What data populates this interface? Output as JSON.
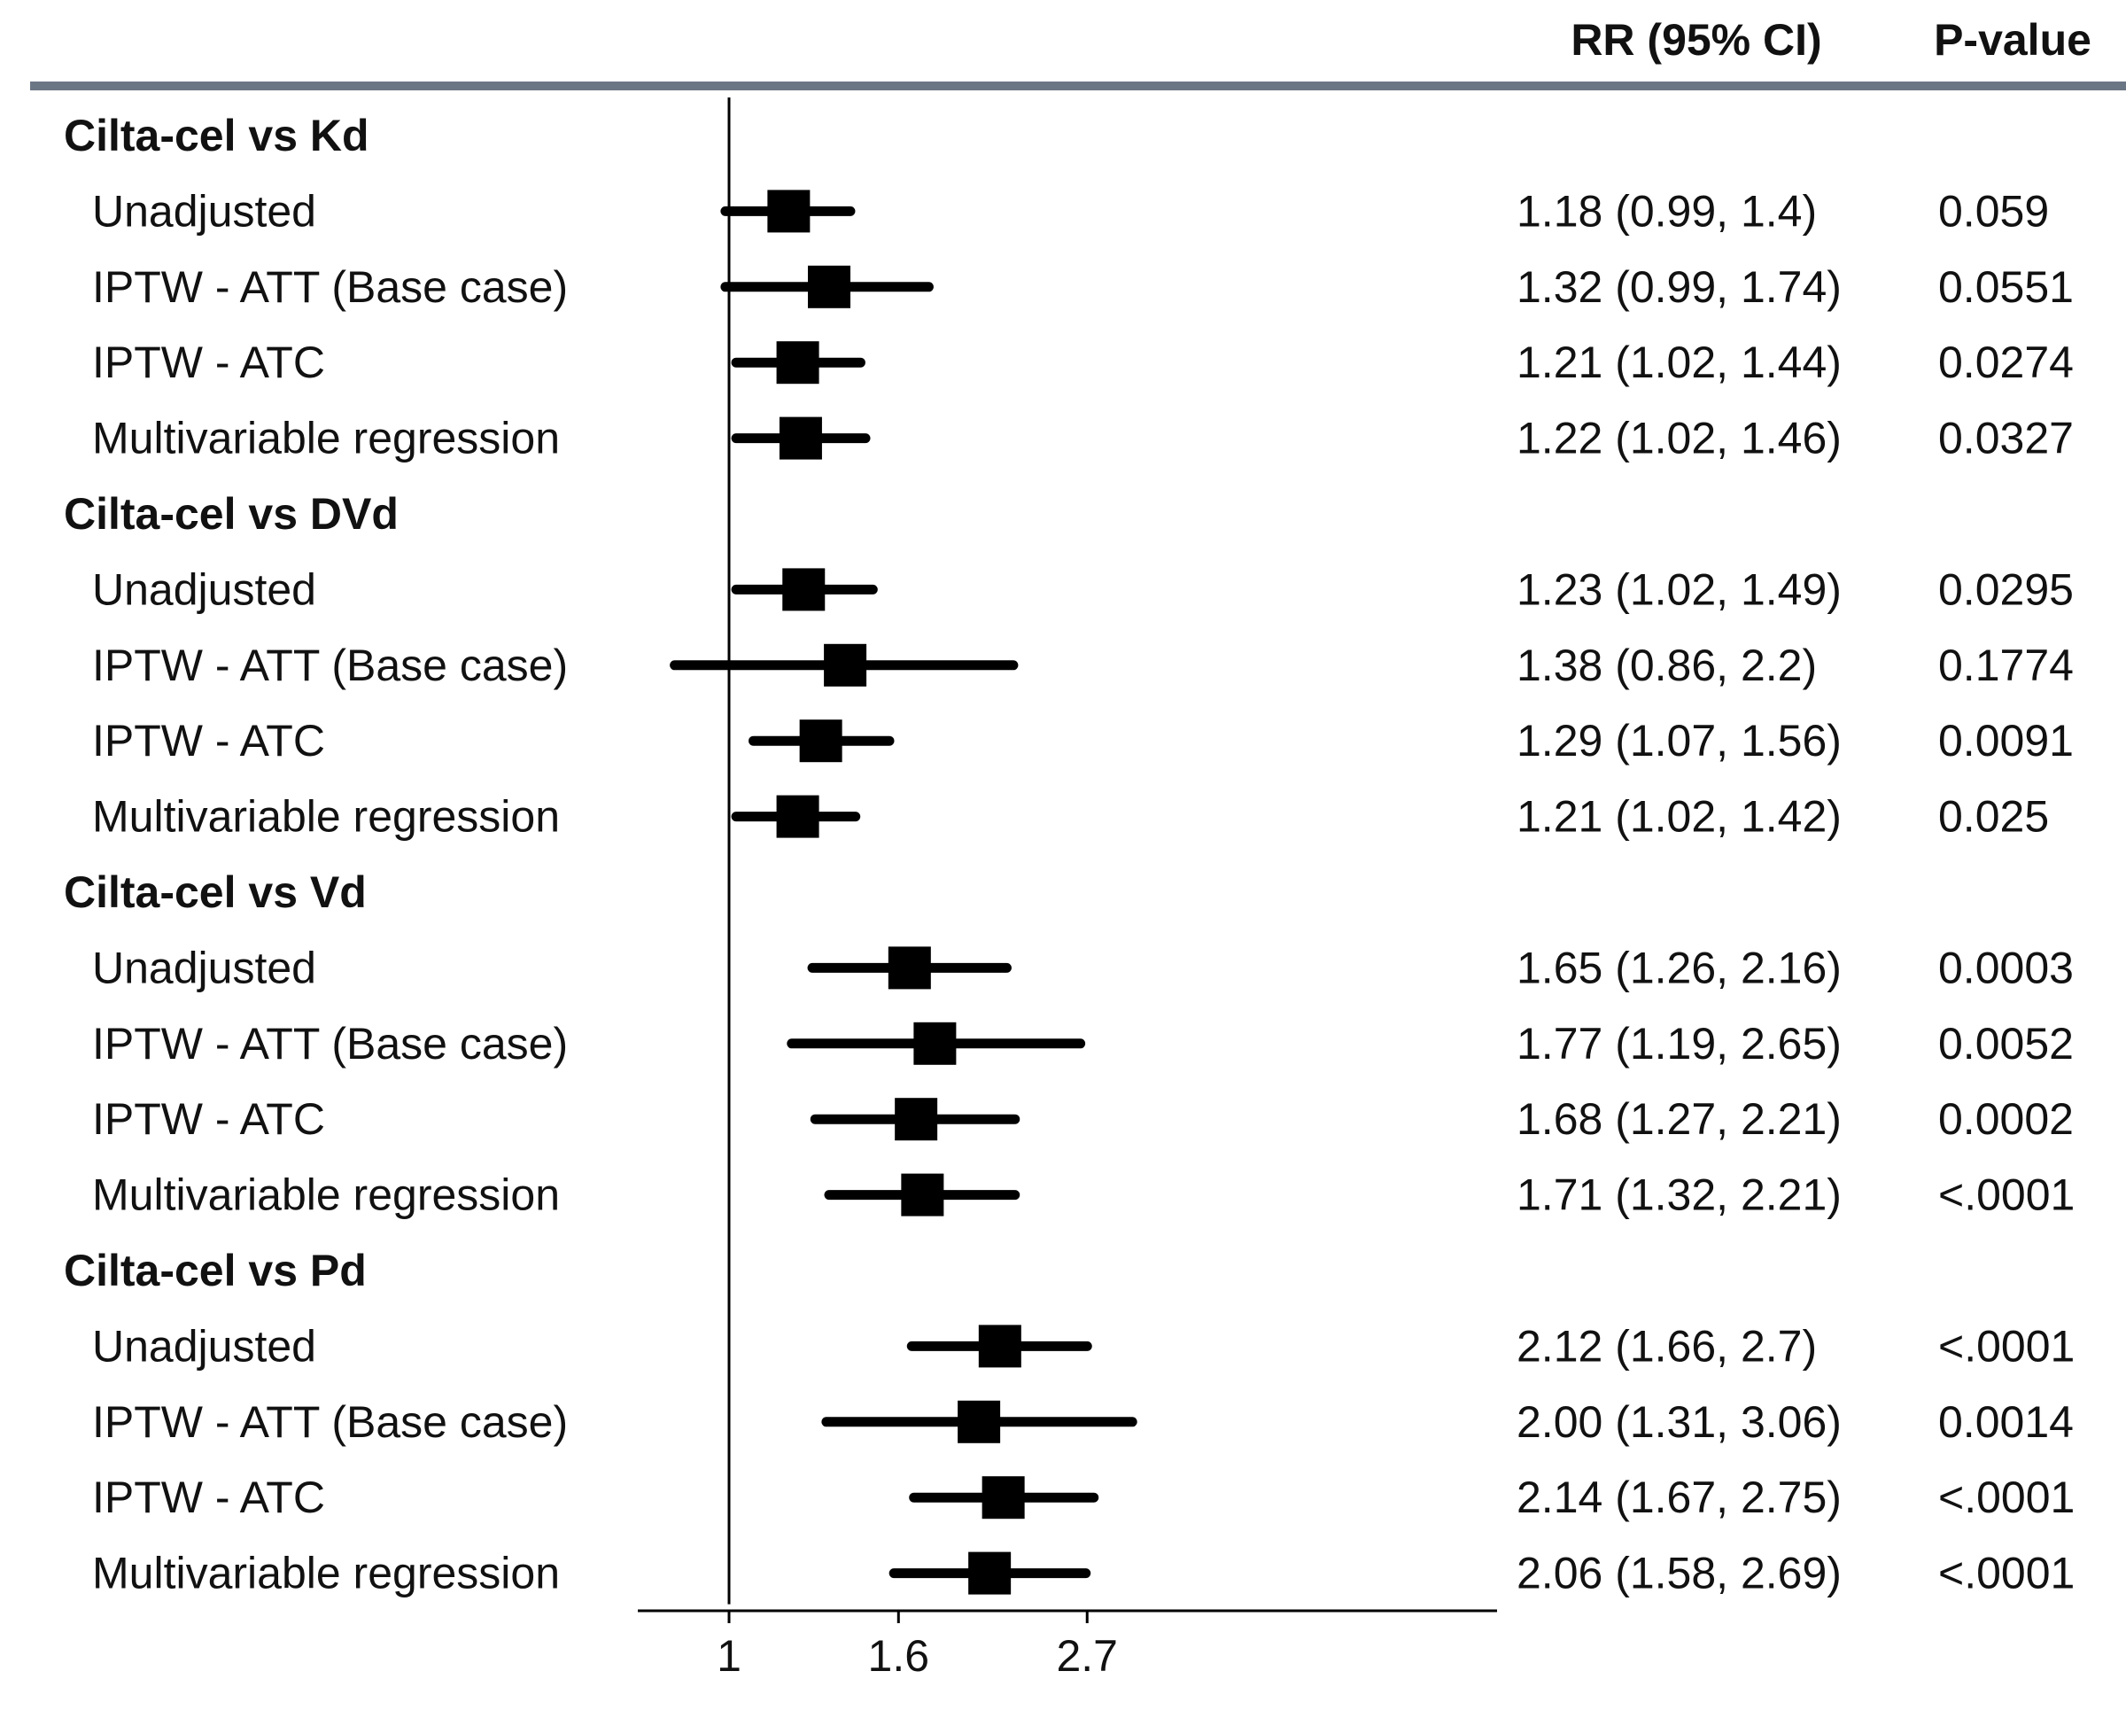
{
  "colors": {
    "header_rule": "#6b7685",
    "marks": "#000000",
    "text": "#111111"
  },
  "chart_data": {
    "type": "forest",
    "x_scale": "log",
    "reference_line": 1,
    "x_ticks": [
      {
        "value": 1,
        "label": "1"
      },
      {
        "value": 1.6,
        "label": "1.6"
      },
      {
        "value": 2.7,
        "label": "2.7"
      }
    ],
    "columns": {
      "estimate_header": "RR (95% CI)",
      "p_header": "P-value"
    },
    "groups": [
      {
        "label": "Cilta-cel vs Kd",
        "rows": [
          {
            "label": "Unadjusted",
            "rr": 1.18,
            "lower": 0.99,
            "upper": 1.4,
            "ci_text": "1.18 (0.99, 1.4)",
            "p": "0.059"
          },
          {
            "label": "IPTW - ATT (Base case)",
            "rr": 1.32,
            "lower": 0.99,
            "upper": 1.74,
            "ci_text": "1.32 (0.99, 1.74)",
            "p": "0.0551"
          },
          {
            "label": "IPTW - ATC",
            "rr": 1.21,
            "lower": 1.02,
            "upper": 1.44,
            "ci_text": "1.21 (1.02, 1.44)",
            "p": "0.0274"
          },
          {
            "label": "Multivariable regression",
            "rr": 1.22,
            "lower": 1.02,
            "upper": 1.46,
            "ci_text": "1.22 (1.02, 1.46)",
            "p": "0.0327"
          }
        ]
      },
      {
        "label": "Cilta-cel vs DVd",
        "rows": [
          {
            "label": "Unadjusted",
            "rr": 1.23,
            "lower": 1.02,
            "upper": 1.49,
            "ci_text": "1.23 (1.02, 1.49)",
            "p": "0.0295"
          },
          {
            "label": "IPTW - ATT (Base case)",
            "rr": 1.38,
            "lower": 0.86,
            "upper": 2.2,
            "ci_text": "1.38 (0.86, 2.2)",
            "p": "0.1774"
          },
          {
            "label": "IPTW - ATC",
            "rr": 1.29,
            "lower": 1.07,
            "upper": 1.56,
            "ci_text": "1.29 (1.07, 1.56)",
            "p": "0.0091"
          },
          {
            "label": "Multivariable regression",
            "rr": 1.21,
            "lower": 1.02,
            "upper": 1.42,
            "ci_text": "1.21 (1.02, 1.42)",
            "p": "0.025"
          }
        ]
      },
      {
        "label": "Cilta-cel vs Vd",
        "rows": [
          {
            "label": "Unadjusted",
            "rr": 1.65,
            "lower": 1.26,
            "upper": 2.16,
            "ci_text": "1.65 (1.26, 2.16)",
            "p": "0.0003"
          },
          {
            "label": "IPTW - ATT (Base case)",
            "rr": 1.77,
            "lower": 1.19,
            "upper": 2.65,
            "ci_text": "1.77 (1.19, 2.65)",
            "p": "0.0052"
          },
          {
            "label": "IPTW - ATC",
            "rr": 1.68,
            "lower": 1.27,
            "upper": 2.21,
            "ci_text": "1.68 (1.27, 2.21)",
            "p": "0.0002"
          },
          {
            "label": "Multivariable regression",
            "rr": 1.71,
            "lower": 1.32,
            "upper": 2.21,
            "ci_text": "1.71 (1.32, 2.21)",
            "p": "<.0001"
          }
        ]
      },
      {
        "label": "Cilta-cel vs Pd",
        "rows": [
          {
            "label": "Unadjusted",
            "rr": 2.12,
            "lower": 1.66,
            "upper": 2.7,
            "ci_text": "2.12 (1.66, 2.7)",
            "p": "<.0001"
          },
          {
            "label": "IPTW - ATT (Base case)",
            "rr": 2.0,
            "lower": 1.31,
            "upper": 3.06,
            "ci_text": "2.00 (1.31, 3.06)",
            "p": "0.0014"
          },
          {
            "label": "IPTW - ATC",
            "rr": 2.14,
            "lower": 1.67,
            "upper": 2.75,
            "ci_text": "2.14 (1.67, 2.75)",
            "p": "<.0001"
          },
          {
            "label": "Multivariable regression",
            "rr": 2.06,
            "lower": 1.58,
            "upper": 2.69,
            "ci_text": "2.06 (1.58, 2.69)",
            "p": "<.0001"
          }
        ]
      }
    ]
  }
}
